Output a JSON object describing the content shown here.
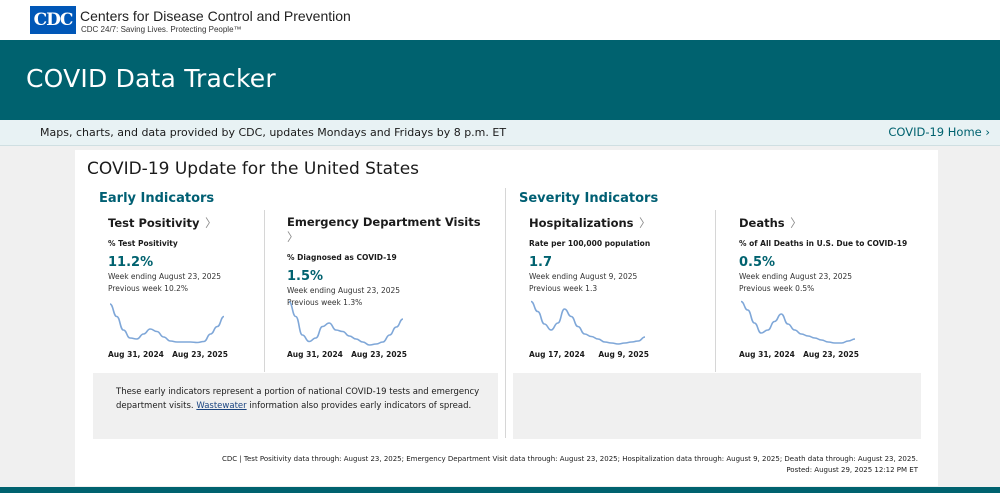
{
  "header": {
    "logo_text": "CDC",
    "org_name": "Centers for Disease Control and Prevention",
    "tagline": "CDC 24/7: Saving Lives. Protecting People™"
  },
  "banner": {
    "title": "COVID Data Tracker"
  },
  "subbar": {
    "message": "Maps, charts, and data provided by CDC, updates Mondays and Fridays by 8 p.m. ET",
    "home_link": "COVID-19 Home"
  },
  "card": {
    "title": "COVID-19 Update for the United States",
    "early_title": "Early Indicators",
    "severity_title": "Severity Indicators",
    "indicators": [
      {
        "title": "Test Positivity",
        "subtitle": "% Test Positivity",
        "value": "11.2%",
        "week": "Week ending August 23, 2025",
        "previous": "Previous week 10.2%",
        "x_start": "Aug 31, 2024",
        "x_end": "Aug 23, 2025",
        "trend": [
          0.1,
          0.35,
          0.62,
          0.78,
          0.8,
          0.7,
          0.6,
          0.65,
          0.76,
          0.84,
          0.86,
          0.86,
          0.86,
          0.87,
          0.85,
          0.7,
          0.55,
          0.35
        ]
      },
      {
        "title": "Emergency Department Visits",
        "subtitle": "% Diagnosed as COVID-19",
        "value": "1.5%",
        "week": "Week ending August 23, 2025",
        "previous": "Previous week 1.3%",
        "x_start": "Aug 31, 2024",
        "x_end": "Aug 23, 2025",
        "trend": [
          0.05,
          0.35,
          0.72,
          0.85,
          0.78,
          0.55,
          0.48,
          0.62,
          0.65,
          0.74,
          0.8,
          0.86,
          0.92,
          0.9,
          0.86,
          0.72,
          0.56,
          0.4
        ]
      },
      {
        "title": "Hospitalizations",
        "subtitle": "Rate per 100,000 population",
        "value": "1.7",
        "week": "Week ending August 9, 2025",
        "previous": "Previous week 1.3",
        "x_start": "Aug 17, 2024",
        "x_end": "Aug 9, 2025",
        "trend": [
          0.05,
          0.25,
          0.5,
          0.62,
          0.48,
          0.2,
          0.35,
          0.55,
          0.7,
          0.75,
          0.8,
          0.86,
          0.88,
          0.9,
          0.88,
          0.86,
          0.84,
          0.76
        ]
      },
      {
        "title": "Deaths",
        "subtitle": "% of All Deaths in U.S. Due to COVID-19",
        "value": "0.5%",
        "week": "Week ending August 23, 2025",
        "previous": "Previous week 0.5%",
        "x_start": "Aug 31, 2024",
        "x_end": "Aug 23, 2025",
        "trend": [
          0.05,
          0.22,
          0.48,
          0.68,
          0.62,
          0.45,
          0.3,
          0.5,
          0.62,
          0.7,
          0.74,
          0.78,
          0.82,
          0.86,
          0.88,
          0.88,
          0.84,
          0.8
        ]
      }
    ],
    "note_text_1": "These early indicators represent a portion of national COVID-19 tests and emergency department visits. ",
    "note_link": "Wastewater",
    "note_text_2": " information also provides early indicators of spread.",
    "footer_line1": "CDC | Test Positivity data through: August 23, 2025; Emergency Department Visit data through: August 23, 2025; Hospitalization data through: August 9, 2025; Death data through: August 23, 2025.",
    "footer_line2": "Posted: August 29, 2025 12:12 PM ET"
  }
}
